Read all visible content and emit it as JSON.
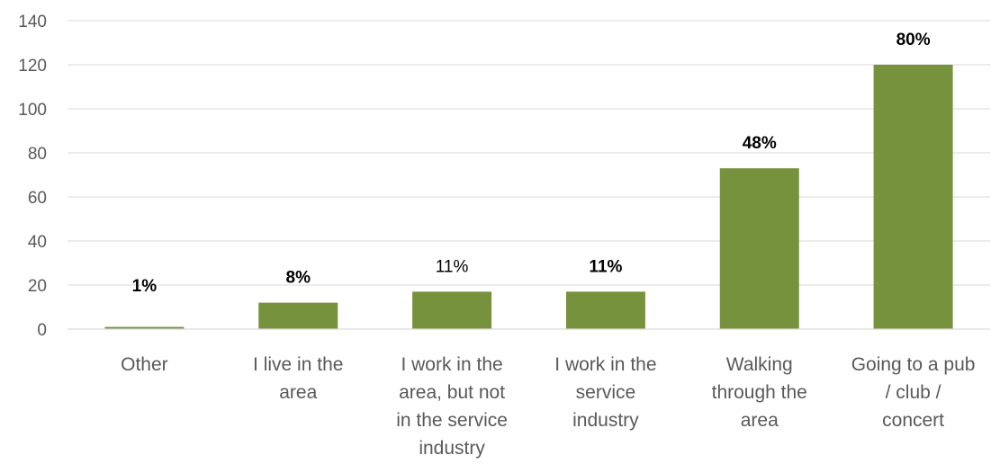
{
  "chart_data": {
    "type": "bar",
    "categories": [
      [
        "Other"
      ],
      [
        "I live in the",
        "area"
      ],
      [
        "I work in the",
        "area, but not",
        "in the service",
        "industry"
      ],
      [
        "I work in the",
        "service",
        "industry"
      ],
      [
        "Walking",
        "through the",
        "area"
      ],
      [
        "Going to a pub",
        "/ club /",
        "concert"
      ]
    ],
    "values": [
      1,
      12,
      17,
      17,
      73,
      120
    ],
    "data_labels": [
      "1%",
      "8%",
      "11%",
      "11%",
      "48%",
      "80%"
    ],
    "data_label_bold": [
      true,
      true,
      false,
      true,
      true,
      true
    ],
    "ylim": [
      0,
      140
    ],
    "yticks": [
      0,
      20,
      40,
      60,
      80,
      100,
      120,
      140
    ],
    "grid": true,
    "colors": {
      "bar": "#76923c",
      "grid": "#d9d9d9",
      "tick_text": "#595959",
      "label_text": "#000000"
    }
  }
}
